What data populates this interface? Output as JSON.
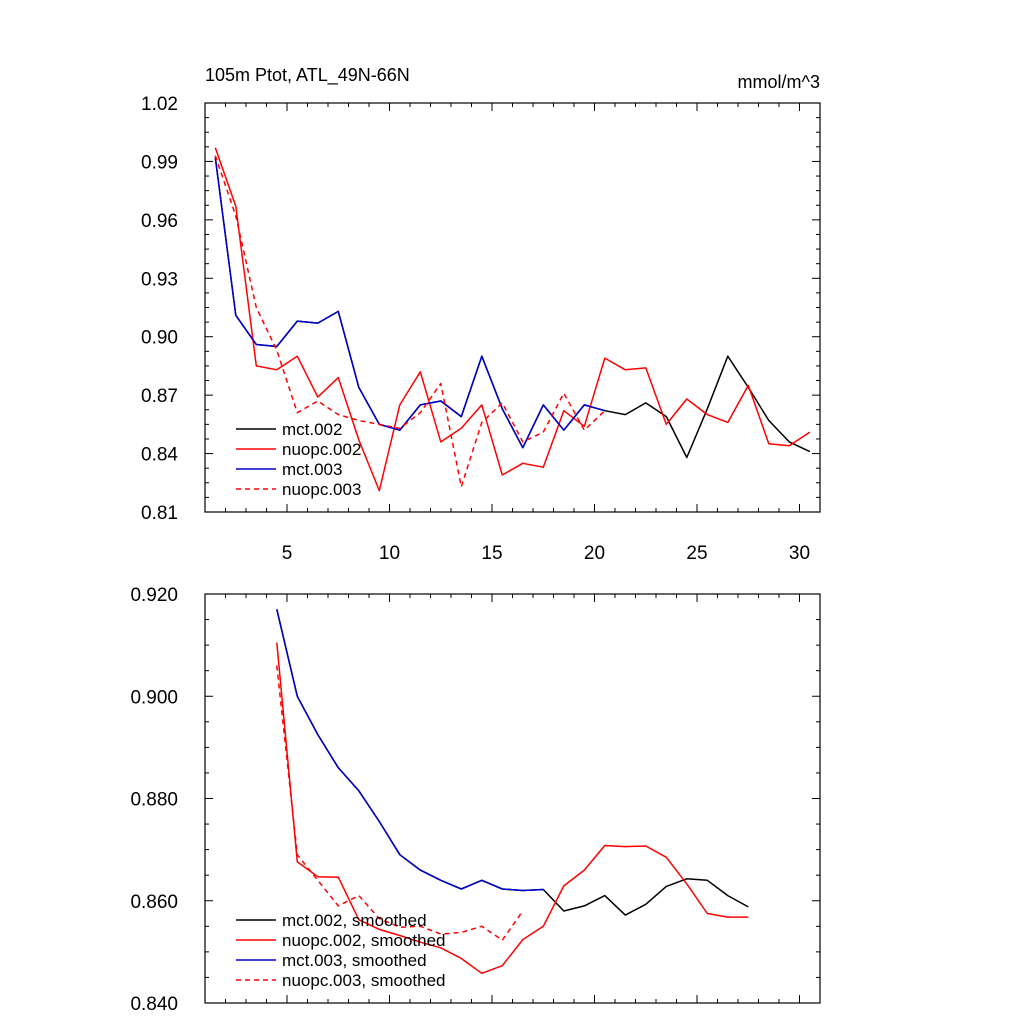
{
  "chart_data": [
    {
      "type": "line",
      "title": "105m Ptot, ATL_49N-66N",
      "units": "mmol/m^3",
      "xlim": [
        1,
        31
      ],
      "ylim": [
        0.81,
        1.02
      ],
      "xticks": [
        5,
        10,
        15,
        20,
        25,
        30
      ],
      "xtick_labels": [
        "5",
        "10",
        "15",
        "20",
        "25",
        "30"
      ],
      "yticks": [
        0.81,
        0.84,
        0.87,
        0.9,
        0.93,
        0.96,
        0.99,
        1.02
      ],
      "ytick_labels": [
        "0.81",
        "0.84",
        "0.87",
        "0.90",
        "0.93",
        "0.96",
        "0.99",
        "1.02"
      ],
      "grid": false,
      "legend_position": "bottom-left",
      "series": [
        {
          "name": "mct.002",
          "color": "#000000",
          "dash": false,
          "x": [
            1.5,
            2.5,
            3.5,
            4.5,
            5.5,
            6.5,
            7.5,
            8.5,
            9.5,
            10.5,
            11.5,
            12.5,
            13.5,
            14.5,
            15.5,
            16.5,
            17.5,
            18.5,
            19.5,
            20.5,
            21.5,
            22.5,
            23.5,
            24.5,
            25.5,
            26.5,
            27.5,
            28.5,
            29.5,
            30.5
          ],
          "values": [
            0.992,
            0.911,
            0.896,
            0.895,
            0.908,
            0.907,
            0.913,
            0.874,
            0.855,
            0.852,
            0.865,
            0.867,
            0.859,
            0.89,
            0.863,
            0.843,
            0.865,
            0.852,
            0.865,
            0.862,
            0.86,
            0.866,
            0.859,
            0.838,
            0.863,
            0.89,
            0.874,
            0.857,
            0.846,
            0.841
          ]
        },
        {
          "name": "nuopc.002",
          "color": "#ff0000",
          "dash": false,
          "x": [
            1.5,
            2.5,
            3.5,
            4.5,
            5.5,
            6.5,
            7.5,
            8.5,
            9.5,
            10.5,
            11.5,
            12.5,
            13.5,
            14.5,
            15.5,
            16.5,
            17.5,
            18.5,
            19.5,
            20.5,
            21.5,
            22.5,
            23.5,
            24.5,
            25.5,
            26.5,
            27.5,
            28.5,
            29.5,
            30.5
          ],
          "values": [
            0.997,
            0.967,
            0.885,
            0.883,
            0.89,
            0.869,
            0.879,
            0.847,
            0.821,
            0.865,
            0.882,
            0.846,
            0.853,
            0.865,
            0.829,
            0.835,
            0.833,
            0.862,
            0.854,
            0.889,
            0.883,
            0.884,
            0.855,
            0.868,
            0.86,
            0.856,
            0.875,
            0.845,
            0.844,
            0.851
          ]
        },
        {
          "name": "mct.003",
          "color": "#0000cc",
          "dash": false,
          "x": [
            1.5,
            2.5,
            3.5,
            4.5,
            5.5,
            6.5,
            7.5,
            8.5,
            9.5,
            10.5,
            11.5,
            12.5,
            13.5,
            14.5,
            15.5,
            16.5,
            17.5,
            18.5,
            19.5,
            20.5
          ],
          "values": [
            0.992,
            0.911,
            0.896,
            0.895,
            0.908,
            0.907,
            0.913,
            0.874,
            0.855,
            0.852,
            0.865,
            0.867,
            0.859,
            0.89,
            0.863,
            0.843,
            0.865,
            0.852,
            0.865,
            0.862
          ]
        },
        {
          "name": "nuopc.003",
          "color": "#ff0000",
          "dash": true,
          "x": [
            1.5,
            2.5,
            3.5,
            4.5,
            5.5,
            6.5,
            7.5,
            8.5,
            9.5,
            10.5,
            11.5,
            12.5,
            13.5,
            14.5,
            15.5,
            16.5,
            17.5,
            18.5,
            19.5,
            20.5
          ],
          "values": [
            0.993,
            0.962,
            0.915,
            0.893,
            0.861,
            0.867,
            0.86,
            0.857,
            0.855,
            0.853,
            0.861,
            0.876,
            0.823,
            0.856,
            0.866,
            0.846,
            0.851,
            0.871,
            0.852,
            0.862
          ]
        }
      ]
    },
    {
      "type": "line",
      "xlim": [
        1,
        31
      ],
      "ylim": [
        0.84,
        0.92
      ],
      "xticks": [
        5,
        10,
        15,
        20,
        25,
        30
      ],
      "yticks": [
        0.84,
        0.86,
        0.88,
        0.9,
        0.92
      ],
      "ytick_labels": [
        "0.840",
        "0.860",
        "0.880",
        "0.900",
        "0.920"
      ],
      "grid": false,
      "legend_position": "bottom-left",
      "series": [
        {
          "name": "mct.002, smoothed",
          "color": "#000000",
          "dash": false,
          "x": [
            4.5,
            5.5,
            6.5,
            7.5,
            8.5,
            9.5,
            10.5,
            11.5,
            12.5,
            13.5,
            14.5,
            15.5,
            16.5,
            17.5,
            18.5,
            19.5,
            20.5,
            21.5,
            22.5,
            23.5,
            24.5,
            25.5,
            26.5,
            27.5
          ],
          "values": [
            0.917,
            0.9,
            0.8925,
            0.886,
            0.8815,
            0.8755,
            0.869,
            0.866,
            0.864,
            0.8623,
            0.864,
            0.8623,
            0.862,
            0.8622,
            0.858,
            0.859,
            0.861,
            0.8572,
            0.8593,
            0.8628,
            0.8643,
            0.864,
            0.861,
            0.8588
          ]
        },
        {
          "name": "nuopc.002, smoothed",
          "color": "#ff0000",
          "dash": false,
          "x": [
            4.5,
            5.5,
            6.5,
            7.5,
            8.5,
            9.5,
            10.5,
            11.5,
            12.5,
            13.5,
            14.5,
            15.5,
            16.5,
            17.5,
            18.5,
            19.5,
            20.5,
            21.5,
            22.5,
            23.5,
            24.5,
            25.5,
            26.5,
            27.5
          ],
          "values": [
            0.9105,
            0.8676,
            0.8647,
            0.8646,
            0.8563,
            0.8544,
            0.8532,
            0.8519,
            0.8508,
            0.8487,
            0.8458,
            0.8473,
            0.8524,
            0.855,
            0.8629,
            0.866,
            0.8708,
            0.8706,
            0.8707,
            0.8685,
            0.8633,
            0.8575,
            0.8568,
            0.8568
          ]
        },
        {
          "name": "mct.003, smoothed",
          "color": "#0000cc",
          "dash": false,
          "x": [
            4.5,
            5.5,
            6.5,
            7.5,
            8.5,
            9.5,
            10.5,
            11.5,
            12.5,
            13.5,
            14.5,
            15.5,
            16.5,
            17.5
          ],
          "values": [
            0.917,
            0.9,
            0.8925,
            0.886,
            0.8815,
            0.8755,
            0.869,
            0.866,
            0.864,
            0.8623,
            0.864,
            0.8623,
            0.862,
            0.8622
          ]
        },
        {
          "name": "nuopc.003, smoothed",
          "color": "#ff0000",
          "dash": true,
          "x": [
            4.5,
            5.5,
            6.5,
            7.5,
            8.5,
            9.5,
            10.5,
            11.5,
            12.5,
            13.5,
            14.5,
            15.5,
            16.5,
            17.5
          ],
          "values": [
            0.906,
            0.869,
            0.864,
            0.859,
            0.861,
            0.8565,
            0.8548,
            0.855,
            0.8535,
            0.8538,
            0.855,
            0.8523,
            0.858,
            null
          ]
        }
      ]
    }
  ]
}
